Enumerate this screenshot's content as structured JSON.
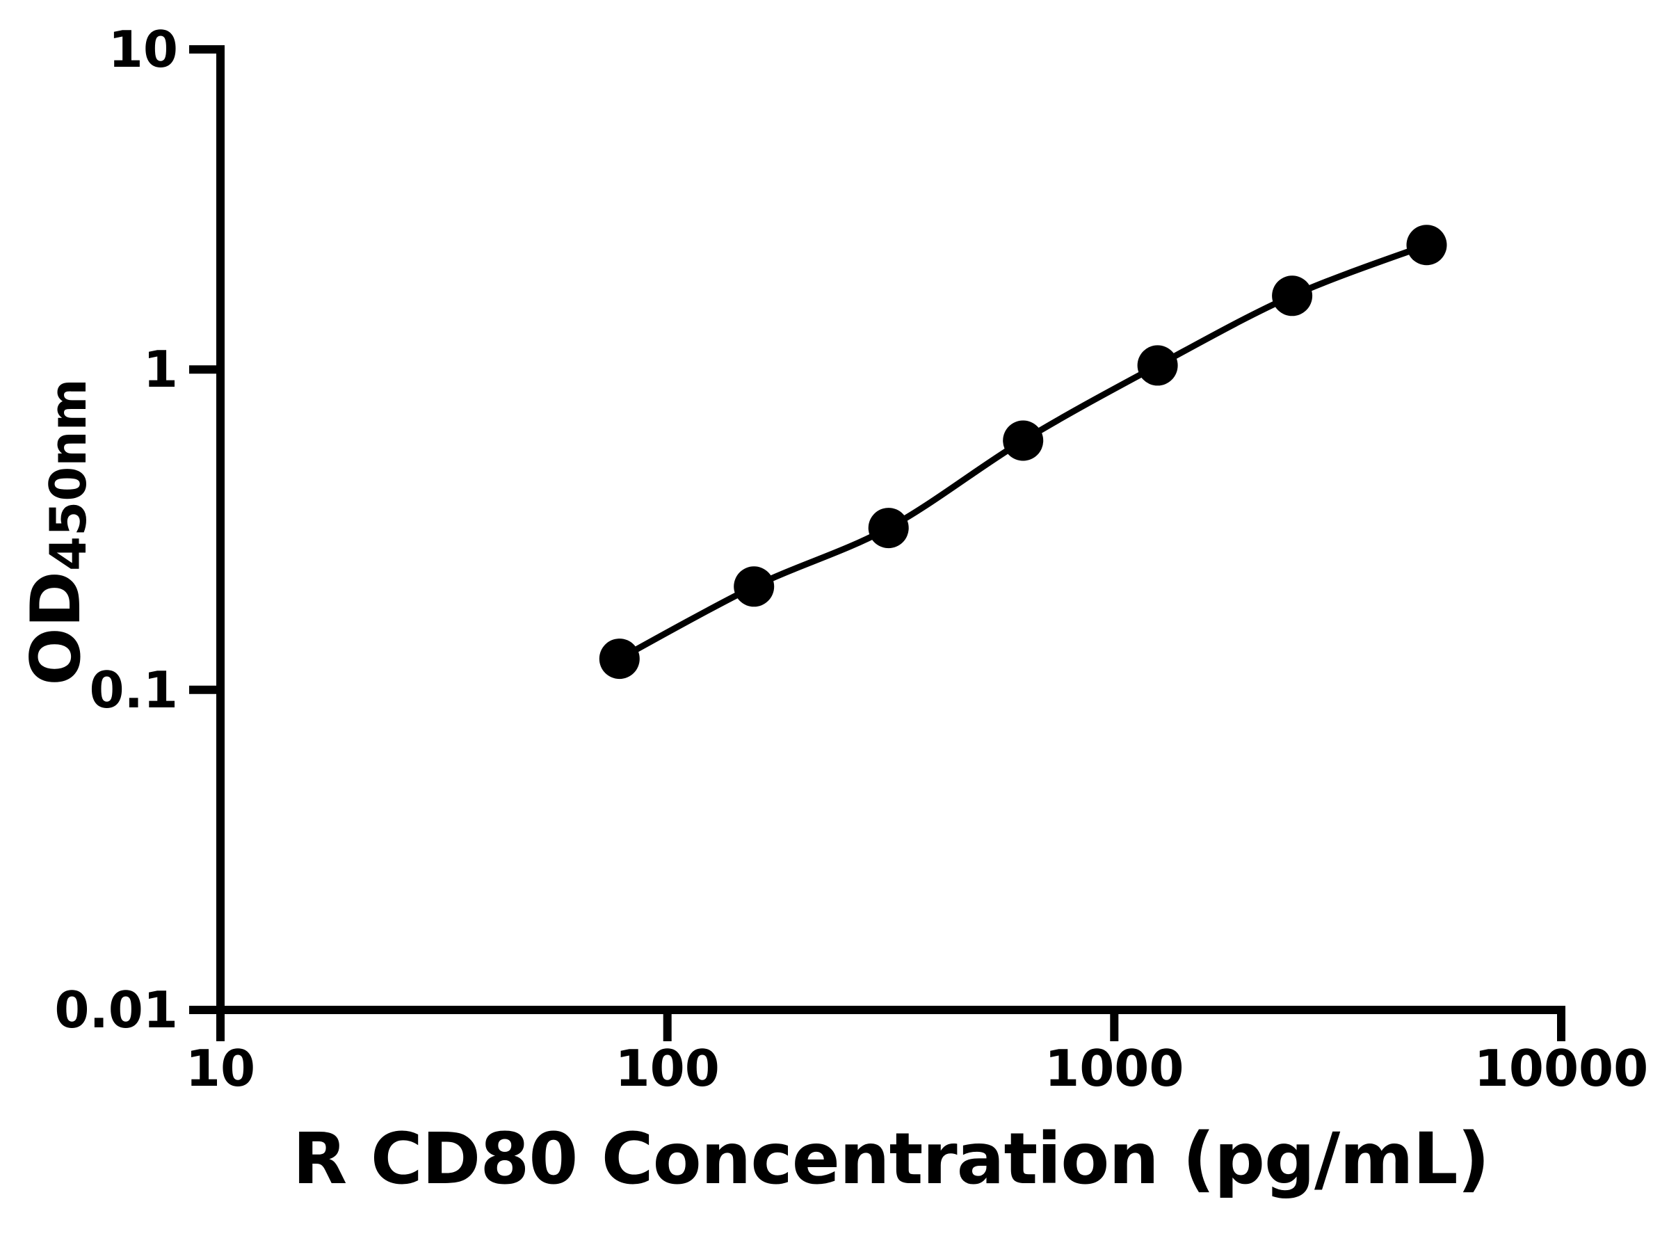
{
  "chart_data": {
    "type": "line",
    "x_scale": "log",
    "y_scale": "log",
    "xlim": [
      10,
      10000
    ],
    "ylim": [
      0.01,
      10
    ],
    "xlabel": "R CD80 Concentration (pg/mL)",
    "ylabel_main": "OD",
    "ylabel_sub": "450nm",
    "grid": false,
    "legend": false,
    "x_ticks": [
      {
        "value": 10,
        "label": "10"
      },
      {
        "value": 100,
        "label": "100"
      },
      {
        "value": 1000,
        "label": "1000"
      },
      {
        "value": 10000,
        "label": "10000"
      }
    ],
    "y_ticks": [
      {
        "value": 10,
        "label": "10"
      },
      {
        "value": 1,
        "label": "1"
      },
      {
        "value": 0.1,
        "label": "0.1"
      },
      {
        "value": 0.01,
        "label": "0.01"
      }
    ],
    "series": [
      {
        "marker": "filled-circle",
        "line": "smooth",
        "color": "#000000",
        "points": [
          {
            "x": 78.125,
            "y": 0.125
          },
          {
            "x": 156.25,
            "y": 0.21
          },
          {
            "x": 312.5,
            "y": 0.32
          },
          {
            "x": 625,
            "y": 0.6
          },
          {
            "x": 1250,
            "y": 1.03
          },
          {
            "x": 2500,
            "y": 1.7
          },
          {
            "x": 5000,
            "y": 2.45
          }
        ]
      }
    ]
  },
  "colors": {
    "ink": "#000000",
    "background": "#ffffff"
  }
}
